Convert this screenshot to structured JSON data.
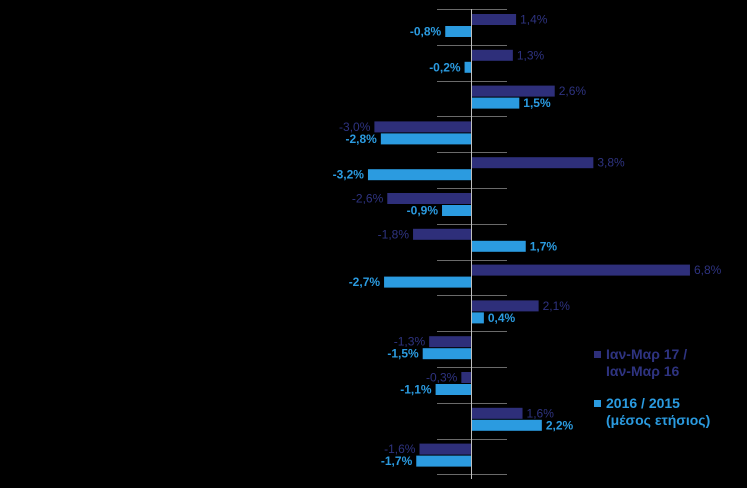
{
  "chart_data": {
    "type": "bar",
    "orientation": "horizontal",
    "xlim": [
      -4.4,
      7.5
    ],
    "grid": false,
    "legend_position": "right",
    "series": [
      {
        "name": "Ιαν-Μαρ 17 / Ιαν-Μαρ 16",
        "color": "#2e2f7a",
        "label_color": "#2e3380",
        "label_bold": false,
        "values": [
          1.4,
          1.3,
          2.6,
          -3.0,
          3.8,
          -2.6,
          -1.8,
          6.8,
          2.1,
          -1.3,
          -0.3,
          1.6,
          -1.6
        ],
        "labels": [
          "1,4%",
          "1,3%",
          "2,6%",
          "-3,0%",
          "3,8%",
          "-2,6%",
          "-1,8%",
          "6,8%",
          "2,1%",
          "-1,3%",
          "-0,3%",
          "1,6%",
          "-1,6%"
        ]
      },
      {
        "name": "2016 / 2015 (μέσος ετήσιος)",
        "color": "#2b9be0",
        "label_color": "#2b9be0",
        "label_bold": true,
        "values": [
          -0.8,
          -0.2,
          1.5,
          -2.8,
          -3.2,
          -0.9,
          1.7,
          -2.7,
          0.4,
          -1.5,
          -1.1,
          2.2,
          -1.7
        ],
        "labels": [
          "-0,8%",
          "-0,2%",
          "1,5%",
          "-2,8%",
          "-3,2%",
          "-0,9%",
          "1,7%",
          "-2,7%",
          "0,4%",
          "-1,5%",
          "-1,1%",
          "2,2%",
          "-1,7%"
        ]
      }
    ],
    "category_count": 13
  },
  "legend": {
    "items": [
      {
        "text": "Ιαν-Μαρ 17 /\nΙαν-Μαρ 16",
        "color": "#2e3380"
      },
      {
        "text": "2016 / 2015\n(μέσος ετήσιος)",
        "color": "#2b9be0"
      }
    ]
  }
}
